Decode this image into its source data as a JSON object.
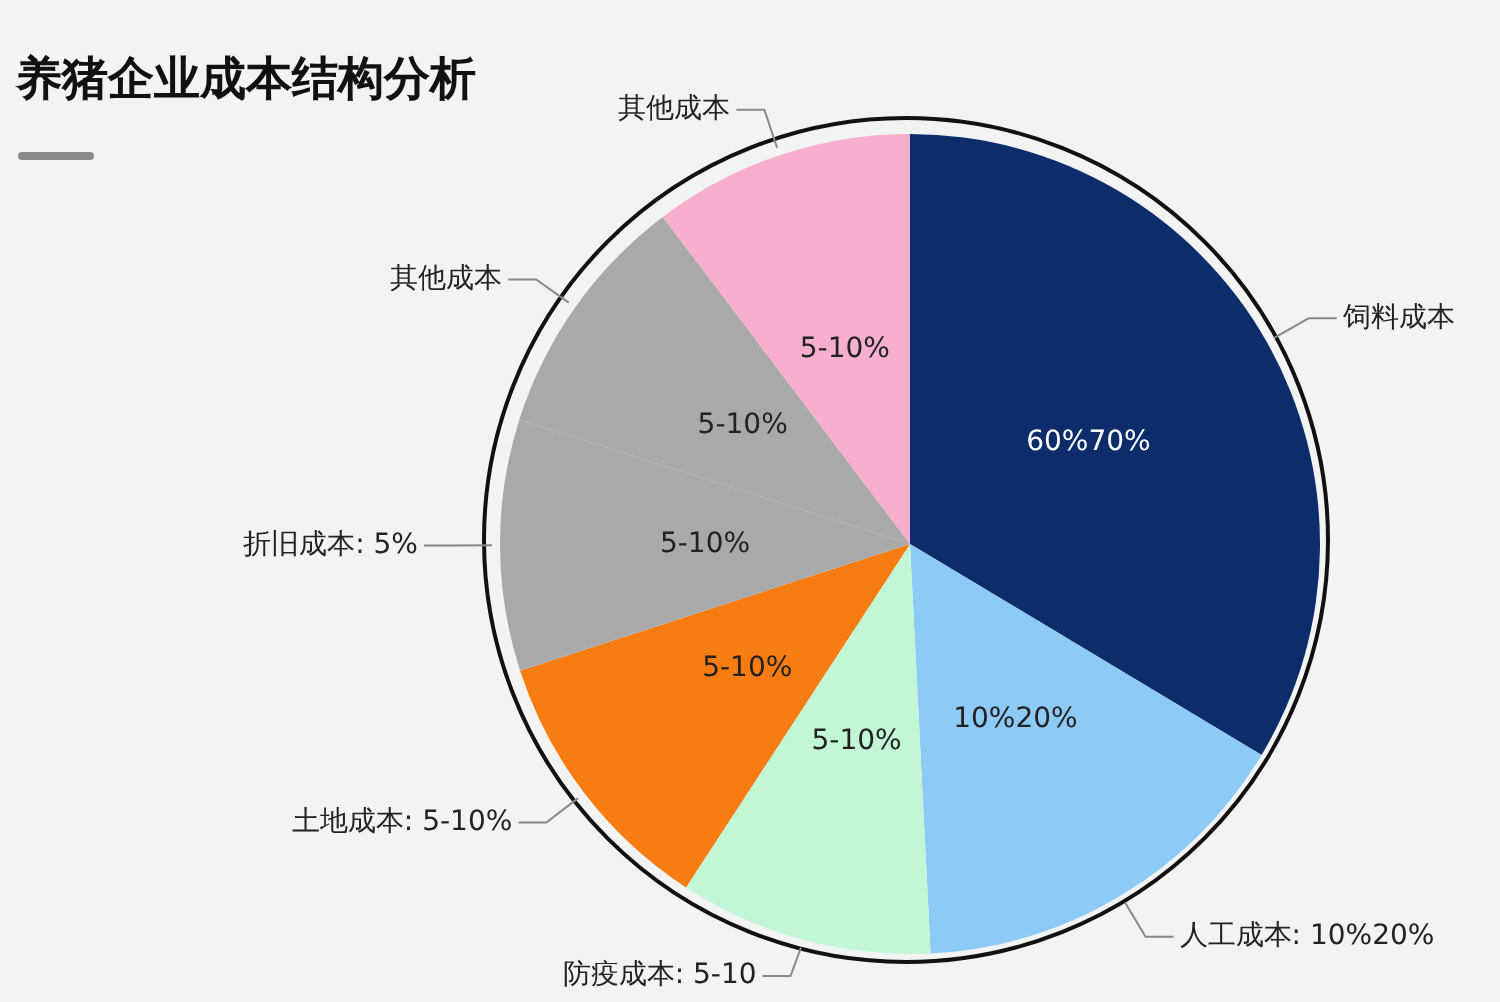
{
  "chart_data": {
    "type": "pie",
    "title": "养猪企业成本结构分析",
    "categories": [
      "饲料成本",
      "人工成本: 10%20%",
      "防疫成本: 5-10",
      "土地成本: 5-10%",
      "折旧成本: 5%",
      "其他成本",
      "其他成本"
    ],
    "values": [
      33.6,
      15.6,
      10,
      10.8,
      9.9,
      9.8,
      10.3
    ],
    "colors": [
      "#0c2c6c",
      "#8dcbf6",
      "#c2f7d6",
      "#f97c12",
      "#a9a9a9",
      "#a9a9a9",
      "#f7aecf"
    ],
    "annotations": [
      "60%70%",
      "10%20%",
      "5-10%",
      "5-10%",
      "5-10%",
      "5-10%",
      "5-10%"
    ],
    "legend": false
  }
}
